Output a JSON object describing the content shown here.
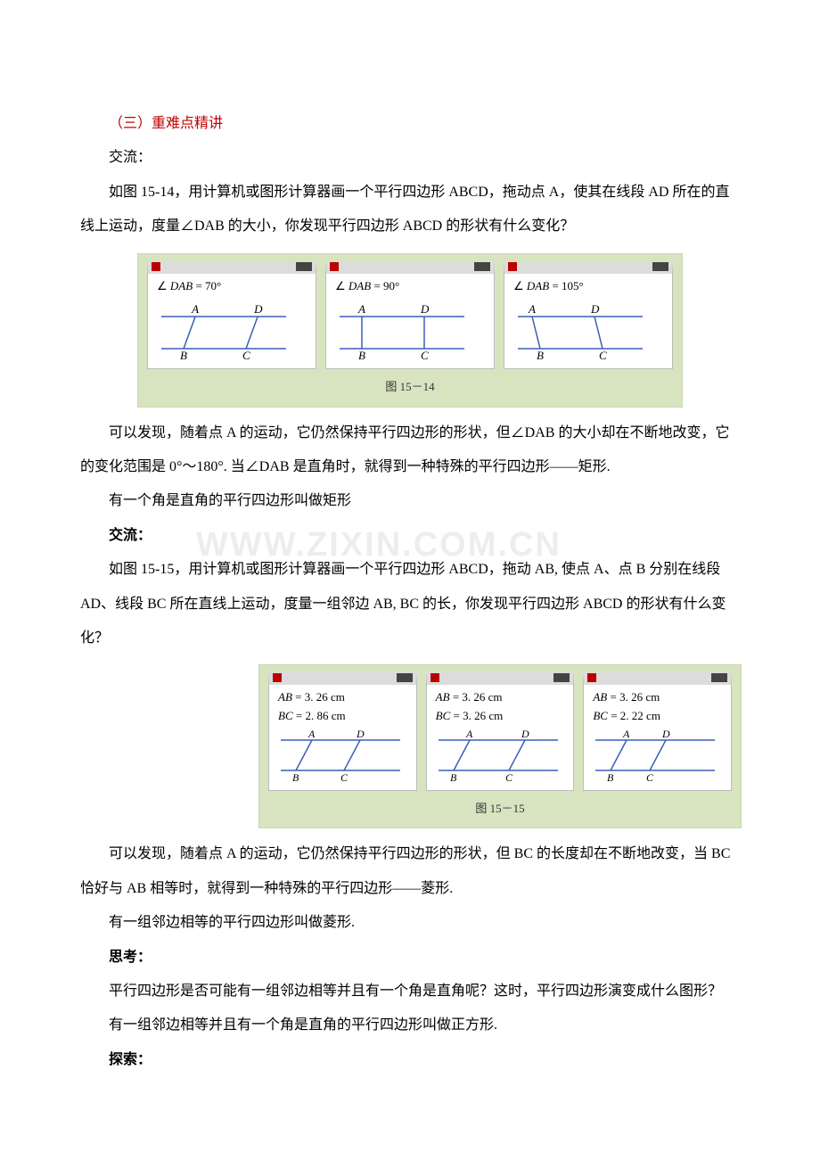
{
  "section_title": "（三）重难点精讲",
  "p1": "交流：",
  "p2": "如图 15-14，用计算机或图形计算器画一个平行四边形 ABCD，拖动点 A，使其在线段 AD 所在的直线上运动，度量∠DAB 的大小，你发现平行四边形 ABCD 的形状有什么变化？",
  "p3": "可以发现，随着点 A 的运动，它仍然保持平行四边形的形状，但∠DAB 的大小却在不断地改变，它的变化范围是 0°～180°. 当∠DAB 是直角时，就得到一种特殊的平行四边形——矩形.",
  "p4": "有一个角是直角的平行四边形叫做矩形",
  "p5": "交流：",
  "p6": "如图 15-15，用计算机或图形计算器画一个平行四边形 ABCD，拖动 AB, 使点 A、点 B 分别在线段 AD、线段 BC 所在直线上运动，度量一组邻边 AB, BC 的长，你发现平行四边形 ABCD 的形状有什么变化？",
  "p7": "可以发现，随着点 A 的运动，它仍然保持平行四边形的形状，但 BC 的长度却在不断地改变，当 BC 恰好与 AB 相等时，就得到一种特殊的平行四边形——菱形.",
  "p8": "有一组邻边相等的平行四边形叫做菱形.",
  "p9": "思考：",
  "p10": "平行四边形是否可能有一组邻边相等并且有一个角是直角呢？这时，平行四边形演变成什么图形？",
  "p11": "有一组邻边相等并且有一个角是直角的平行四边形叫做正方形.",
  "p12": "探索：",
  "watermark": "WWW.ZIXIN.COM.CN",
  "fig1": {
    "caption": "图 15－14",
    "panel_bg": "#ffffff",
    "container_bg": "#d8e4c0",
    "line_color": "#3a5fb8",
    "text_color": "#000000",
    "panels": [
      {
        "label_html": "∠ <i>DAB</i> = 70°",
        "skew": 20,
        "A": "A",
        "B": "B",
        "C": "C",
        "D": "D"
      },
      {
        "label_html": "∠ <i>DAB</i> = 90°",
        "skew": 0,
        "A": "A",
        "B": "B",
        "C": "C",
        "D": "D"
      },
      {
        "label_html": "∠ <i>DAB</i> = 105°",
        "skew": -14,
        "A": "A",
        "B": "B",
        "C": "C",
        "D": "D"
      }
    ]
  },
  "fig2": {
    "caption": "图 15－15",
    "panel_bg": "#ffffff",
    "container_bg": "#d8e4c0",
    "line_color": "#3a5fb8",
    "text_color": "#000000",
    "panels": [
      {
        "l1_html": "<i>AB</i> = 3. 26 cm",
        "l2_html": "<i>BC</i> = 2. 86 cm",
        "bc_w": 54,
        "A": "A",
        "B": "B",
        "C": "C",
        "D": "D"
      },
      {
        "l1_html": "<i>AB</i> = 3. 26 cm",
        "l2_html": "<i>BC</i> = 3. 26 cm",
        "bc_w": 62,
        "A": "A",
        "B": "B",
        "C": "C",
        "D": "D"
      },
      {
        "l1_html": "<i>AB</i> = 3. 26 cm",
        "l2_html": "<i>BC</i> = 2. 22 cm",
        "bc_w": 44,
        "A": "A",
        "B": "B",
        "C": "C",
        "D": "D"
      }
    ]
  }
}
